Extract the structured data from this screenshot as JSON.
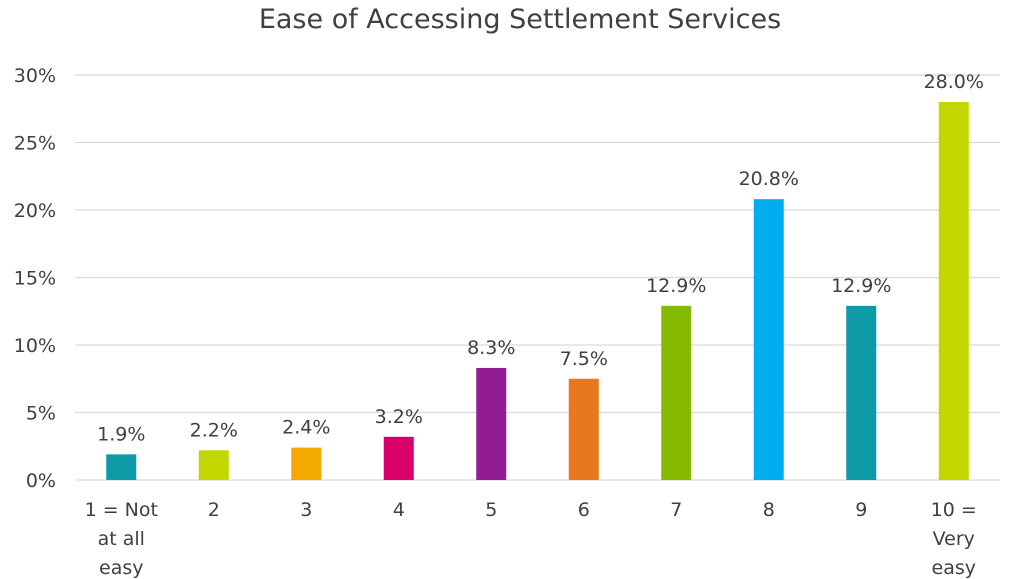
{
  "chart_data": {
    "type": "bar",
    "title": "Ease of Accessing Settlement Services",
    "xlabel": "",
    "ylabel": "",
    "categories": [
      "1 = Not at all easy",
      "2",
      "3",
      "4",
      "5",
      "6",
      "7",
      "8",
      "9",
      "10 = Very easy"
    ],
    "category_lines": [
      [
        "1 = Not",
        "at all",
        "easy"
      ],
      [
        "2"
      ],
      [
        "3"
      ],
      [
        "4"
      ],
      [
        "5"
      ],
      [
        "6"
      ],
      [
        "7"
      ],
      [
        "8"
      ],
      [
        "9"
      ],
      [
        "10 =",
        "Very",
        "easy"
      ]
    ],
    "values": [
      1.9,
      2.2,
      2.4,
      3.2,
      8.3,
      7.5,
      12.9,
      20.8,
      12.9,
      28.0
    ],
    "data_labels": [
      "1.9%",
      "2.2%",
      "2.4%",
      "3.2%",
      "8.3%",
      "7.5%",
      "12.9%",
      "20.8%",
      "12.9%",
      "28.0%"
    ],
    "colors": [
      "#0d9aa6",
      "#c3d600",
      "#f3a900",
      "#d8006b",
      "#911c93",
      "#e8771f",
      "#86ba00",
      "#00adef",
      "#0d9aa6",
      "#c3d600"
    ],
    "ylim": [
      0,
      30
    ],
    "yticks": [
      0,
      5,
      10,
      15,
      20,
      25,
      30
    ],
    "ytick_labels": [
      "0%",
      "5%",
      "10%",
      "15%",
      "20%",
      "25%",
      "30%"
    ],
    "grid": true,
    "legend": "none",
    "grid_color": "#d9d9d9"
  }
}
